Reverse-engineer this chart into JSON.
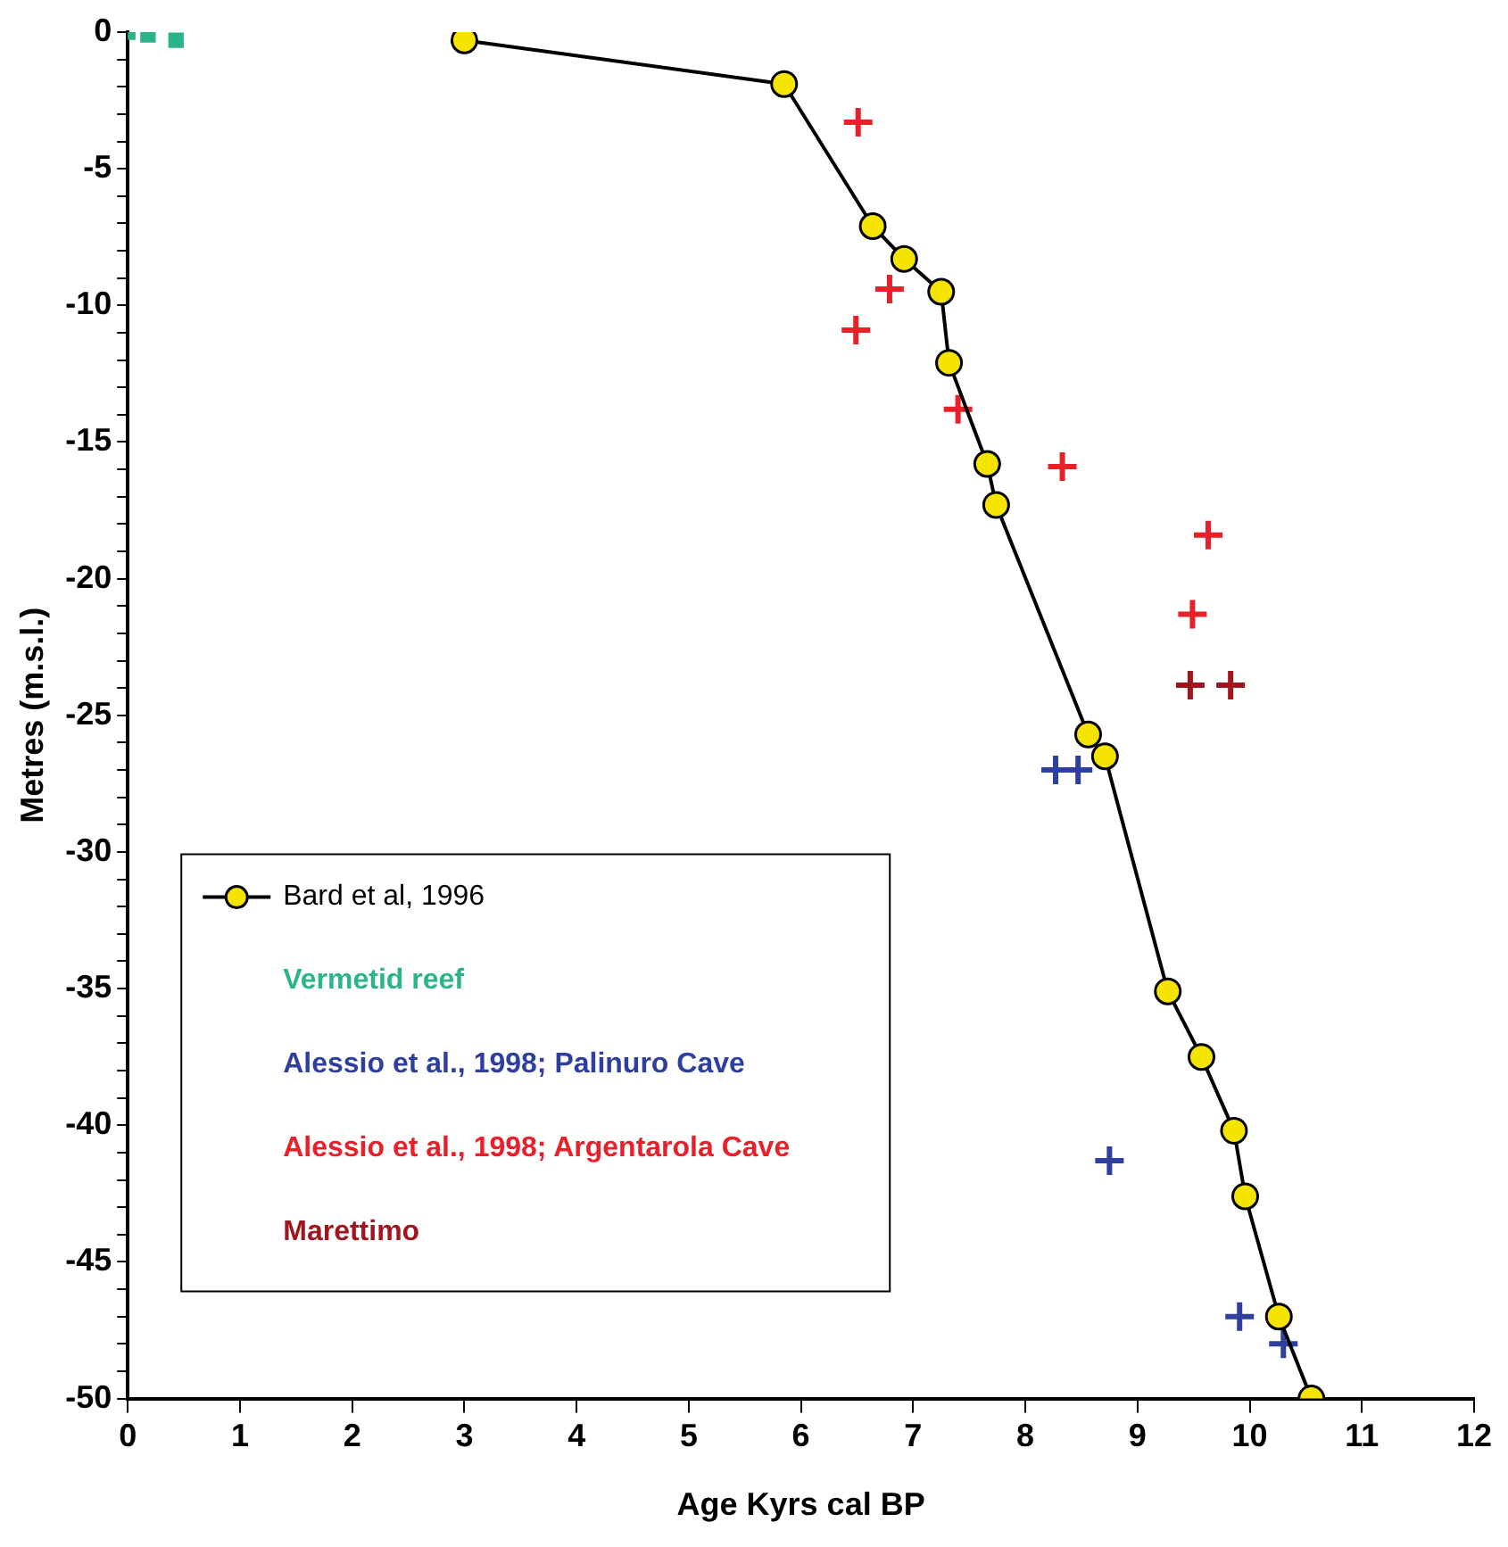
{
  "chart_data": {
    "type": "scatter",
    "xlabel": "Age Kyrs cal BP",
    "ylabel": "Metres (m.s.l.)",
    "xlim": [
      0,
      12
    ],
    "xticks": [
      0,
      1,
      2,
      3,
      4,
      5,
      6,
      7,
      8,
      9,
      10,
      11,
      12
    ],
    "ylim": [
      -50,
      0
    ],
    "yticks": [
      0,
      {
        "value": -1,
        "label": null
      },
      {
        "value": -2,
        "label": null
      },
      {
        "value": -3,
        "label": null
      },
      {
        "value": -4,
        "label": null
      },
      -5,
      {
        "value": -6,
        "label": null
      },
      {
        "value": -7,
        "label": null
      },
      {
        "value": -8,
        "label": null
      },
      {
        "value": -9,
        "label": null
      },
      -10,
      {
        "value": -11,
        "label": null
      },
      {
        "value": -12,
        "label": null
      },
      {
        "value": -13,
        "label": null
      },
      {
        "value": -14,
        "label": null
      },
      -15,
      {
        "value": -16,
        "label": null
      },
      {
        "value": -17,
        "label": null
      },
      {
        "value": -18,
        "label": null
      },
      {
        "value": -19,
        "label": null
      },
      -20,
      {
        "value": -21,
        "label": null
      },
      {
        "value": -22,
        "label": null
      },
      {
        "value": -23,
        "label": null
      },
      {
        "value": -24,
        "label": null
      },
      -25,
      {
        "value": -26,
        "label": null
      },
      {
        "value": -27,
        "label": null
      },
      {
        "value": -28,
        "label": null
      },
      {
        "value": -29,
        "label": null
      },
      -30,
      {
        "value": -31,
        "label": null
      },
      {
        "value": -32,
        "label": null
      },
      {
        "value": -33,
        "label": null
      },
      {
        "value": -34,
        "label": null
      },
      -35,
      {
        "value": -36,
        "label": null
      },
      {
        "value": -37,
        "label": null
      },
      {
        "value": -38,
        "label": null
      },
      {
        "value": -39,
        "label": null
      },
      -40,
      {
        "value": -41,
        "label": null
      },
      {
        "value": -42,
        "label": null
      },
      {
        "value": -43,
        "label": null
      },
      {
        "value": -44,
        "label": null
      },
      -45,
      {
        "value": -46,
        "label": null
      },
      {
        "value": -47,
        "label": null
      },
      {
        "value": -48,
        "label": null
      },
      {
        "value": -49,
        "label": null
      },
      -50
    ],
    "grid": false,
    "legend": "bottom left",
    "series": [
      {
        "name": "Bard et al, 1996",
        "type": "line",
        "marker": "circle",
        "color": "#f5e400",
        "x": [
          3.0,
          5.85,
          6.64,
          6.92,
          7.25,
          7.32,
          7.66,
          7.74,
          8.56,
          8.71,
          9.27,
          9.57,
          9.86,
          9.96,
          10.26,
          10.55
        ],
        "values": [
          -0.3,
          -1.9,
          -7.1,
          -8.3,
          -9.5,
          -12.1,
          -15.8,
          -17.3,
          -25.7,
          -26.5,
          -35.1,
          -37.5,
          -40.2,
          -42.6,
          -47.0,
          -50.0
        ]
      },
      {
        "name": "Vermetid reef",
        "type": "scatter",
        "marker": "square",
        "color": "#2bb38a",
        "x": [
          0.0,
          0.18,
          0.43
        ],
        "values": [
          0.0,
          -0.1,
          -0.3
        ]
      },
      {
        "name": "Alessio et al., 1998; Palinuro Cave",
        "type": "scatter",
        "marker": "cross",
        "color": "#2e3f9e",
        "x": [
          8.27,
          8.47,
          8.75,
          9.91,
          10.3
        ],
        "values": [
          -27.0,
          -27.0,
          -41.3,
          -47.0,
          -48.0
        ]
      },
      {
        "name": "Alessio et al., 1998; Argentarola Cave",
        "type": "scatter",
        "marker": "cross",
        "color": "#e8202a",
        "x": [
          6.51,
          6.79,
          6.49,
          7.4,
          8.33,
          9.63,
          9.49
        ],
        "values": [
          -3.3,
          -9.4,
          -10.9,
          -13.8,
          -15.9,
          -18.4,
          -21.3
        ]
      },
      {
        "name": "Marettimo",
        "type": "scatter",
        "marker": "cross",
        "color": "#a0161e",
        "x": [
          9.47,
          9.83
        ],
        "values": [
          -23.9,
          -23.9
        ]
      }
    ]
  }
}
